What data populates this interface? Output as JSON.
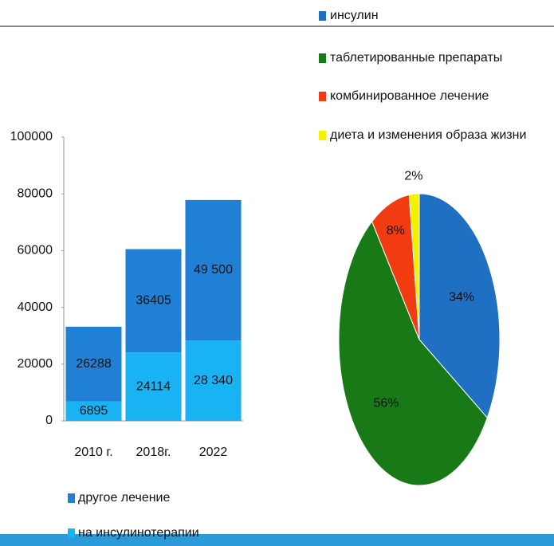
{
  "chart_data": [
    {
      "type": "bar",
      "stacked": true,
      "categories": [
        "2010 г.",
        "2018г.",
        "2022"
      ],
      "series": [
        {
          "name": "на инсулинотерапии",
          "color": "#19b2f2",
          "values": [
            6895,
            24114,
            28340
          ],
          "value_labels": [
            "6895",
            "24114",
            "28 340"
          ]
        },
        {
          "name": "другое лечение",
          "color": "#1f80d6",
          "values": [
            26288,
            36405,
            49500
          ],
          "value_labels": [
            "26288",
            "36405",
            "49 500"
          ]
        }
      ],
      "ylim": [
        0,
        100000
      ],
      "yticks": [
        0,
        20000,
        40000,
        60000,
        80000,
        100000
      ],
      "grid": false,
      "legend": "bottom"
    },
    {
      "type": "pie",
      "categories": [
        "инсулин",
        "таблетированные препараты",
        "комбинированное лечение",
        "диета и изменения образа жизни"
      ],
      "values": [
        34,
        56,
        8,
        2
      ],
      "value_labels": [
        "34%",
        "56%",
        "8%",
        "2%"
      ],
      "colors": [
        "#1f6fc2",
        "#177a17",
        "#f03c10",
        "#f2f200"
      ],
      "legend": "top"
    }
  ]
}
